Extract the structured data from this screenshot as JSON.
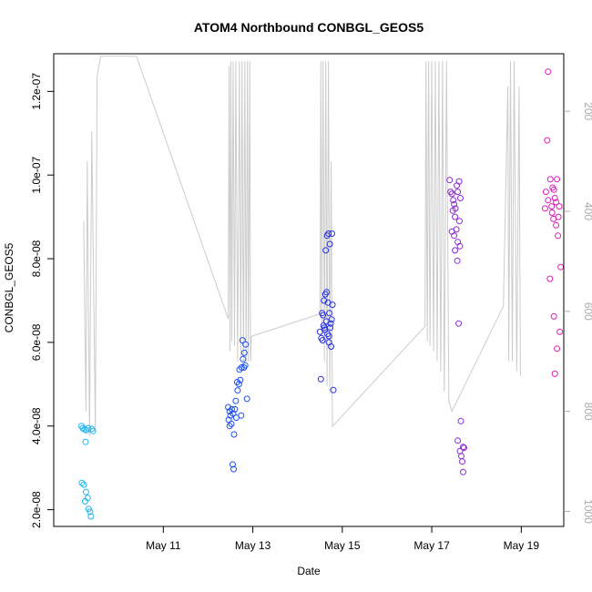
{
  "chart_data": {
    "type": "scatter",
    "title": "ATOM4 Northbound CONBGL_GEOS5",
    "xlabel": "Date",
    "ylabel": "CONBGL_GEOS5",
    "xlim": [
      8.55,
      19.95
    ],
    "ylim": [
      1.6e-08,
      1.29e-07
    ],
    "x_ticks": [
      {
        "value": 11,
        "label": "May 11"
      },
      {
        "value": 13,
        "label": "May 13"
      },
      {
        "value": 15,
        "label": "May 15"
      },
      {
        "value": 17,
        "label": "May 17"
      },
      {
        "value": 19,
        "label": "May 19"
      }
    ],
    "y_ticks": [
      {
        "value": 2e-08,
        "label": "2.0e-08"
      },
      {
        "value": 4e-08,
        "label": "4.0e-08"
      },
      {
        "value": 6e-08,
        "label": "6.0e-08"
      },
      {
        "value": 8e-08,
        "label": "8.0e-08"
      },
      {
        "value": 1e-07,
        "label": "1.0e-07"
      },
      {
        "value": 1.2e-07,
        "label": "1.2e-07"
      }
    ],
    "right_axis": {
      "lim": [
        1030,
        85
      ],
      "ticks": [
        {
          "value": 200,
          "label": "200"
        },
        {
          "value": 400,
          "label": "400"
        },
        {
          "value": 600,
          "label": "600"
        },
        {
          "value": 800,
          "label": "800"
        },
        {
          "value": 1000,
          "label": "1000"
        }
      ],
      "color": "#aaaaaa"
    },
    "line_color": "#cccccc",
    "altitude_line": [
      [
        9.22,
        420
      ],
      [
        9.27,
        800
      ],
      [
        9.3,
        300
      ],
      [
        9.35,
        850
      ],
      [
        9.4,
        240
      ],
      [
        9.48,
        840
      ],
      [
        9.52,
        130
      ],
      [
        9.6,
        90
      ],
      [
        10.4,
        90
      ],
      [
        12.45,
        615
      ],
      [
        12.47,
        110
      ],
      [
        12.49,
        680
      ],
      [
        12.51,
        100
      ],
      [
        12.53,
        660
      ],
      [
        12.56,
        100
      ],
      [
        12.59,
        670
      ],
      [
        12.62,
        100
      ],
      [
        12.66,
        700
      ],
      [
        12.7,
        100
      ],
      [
        12.73,
        690
      ],
      [
        12.76,
        100
      ],
      [
        12.79,
        700
      ],
      [
        12.82,
        100
      ],
      [
        12.85,
        700
      ],
      [
        12.88,
        100
      ],
      [
        12.9,
        700
      ],
      [
        12.93,
        100
      ],
      [
        12.95,
        700
      ],
      [
        12.97,
        650
      ],
      [
        14.5,
        605
      ],
      [
        14.52,
        100
      ],
      [
        14.54,
        650
      ],
      [
        14.57,
        100
      ],
      [
        14.6,
        700
      ],
      [
        14.63,
        100
      ],
      [
        14.66,
        750
      ],
      [
        14.69,
        100
      ],
      [
        14.72,
        760
      ],
      [
        14.75,
        300
      ],
      [
        14.78,
        830
      ],
      [
        16.85,
        630
      ],
      [
        16.87,
        100
      ],
      [
        16.9,
        660
      ],
      [
        16.93,
        100
      ],
      [
        16.96,
        670
      ],
      [
        17.0,
        100
      ],
      [
        17.04,
        680
      ],
      [
        17.08,
        100
      ],
      [
        17.12,
        700
      ],
      [
        17.16,
        100
      ],
      [
        17.2,
        720
      ],
      [
        17.24,
        100
      ],
      [
        17.28,
        760
      ],
      [
        17.33,
        100
      ],
      [
        17.38,
        780
      ],
      [
        17.42,
        790
      ],
      [
        17.45,
        800
      ],
      [
        18.6,
        590
      ],
      [
        18.7,
        150
      ],
      [
        18.72,
        700
      ],
      [
        18.76,
        100
      ],
      [
        18.8,
        700
      ],
      [
        18.84,
        100
      ],
      [
        18.9,
        720
      ],
      [
        18.95,
        150
      ],
      [
        18.98,
        730
      ]
    ],
    "series": [
      {
        "name": "",
        "color": "#1eb4f0",
        "points": [
          [
            9.17,
            4e-08
          ],
          [
            9.2,
            3.95e-08
          ],
          [
            9.24,
            3.92e-08
          ],
          [
            9.28,
            3.9e-08
          ],
          [
            9.32,
            3.95e-08
          ],
          [
            9.4,
            3.93e-08
          ],
          [
            9.43,
            3.88e-08
          ],
          [
            9.26,
            3.62e-08
          ],
          [
            9.18,
            2.64e-08
          ],
          [
            9.22,
            2.6e-08
          ],
          [
            9.27,
            2.42e-08
          ],
          [
            9.31,
            2.28e-08
          ],
          [
            9.25,
            2.2e-08
          ],
          [
            9.33,
            2.02e-08
          ],
          [
            9.36,
            1.95e-08
          ],
          [
            9.38,
            1.84e-08
          ]
        ]
      },
      {
        "name": "",
        "color": "#1e50f0",
        "points": [
          [
            12.45,
            4.45e-08
          ],
          [
            12.48,
            4.35e-08
          ],
          [
            12.5,
            4.25e-08
          ],
          [
            12.53,
            4.4e-08
          ],
          [
            12.56,
            4.3e-08
          ],
          [
            12.6,
            4.4e-08
          ],
          [
            12.63,
            4.2e-08
          ],
          [
            12.46,
            4.15e-08
          ],
          [
            12.52,
            4.05e-08
          ],
          [
            12.58,
            3.8e-08
          ],
          [
            12.55,
            3.08e-08
          ],
          [
            12.57,
            2.97e-08
          ],
          [
            12.48,
            4e-08
          ],
          [
            12.62,
            4.6e-08
          ],
          [
            12.66,
            4.85e-08
          ],
          [
            12.69,
            5e-08
          ],
          [
            12.72,
            5.1e-08
          ],
          [
            12.65,
            5.05e-08
          ],
          [
            12.75,
            5.4e-08
          ],
          [
            12.78,
            5.6e-08
          ],
          [
            12.81,
            5.75e-08
          ],
          [
            12.84,
            5.95e-08
          ],
          [
            12.77,
            6.05e-08
          ],
          [
            12.7,
            5.35e-08
          ],
          [
            12.83,
            5.45e-08
          ],
          [
            12.87,
            4.65e-08
          ],
          [
            12.74,
            4.25e-08
          ],
          [
            12.8,
            5.4e-08
          ]
        ]
      },
      {
        "name": "",
        "color": "#2830e0",
        "points": [
          [
            14.5,
            6.25e-08
          ],
          [
            14.53,
            6.1e-08
          ],
          [
            14.56,
            6.05e-08
          ],
          [
            14.58,
            6.4e-08
          ],
          [
            14.61,
            6.3e-08
          ],
          [
            14.64,
            6.5e-08
          ],
          [
            14.67,
            6.2e-08
          ],
          [
            14.7,
            6.15e-08
          ],
          [
            14.73,
            6.35e-08
          ],
          [
            14.76,
            6.55e-08
          ],
          [
            14.78,
            6.9e-08
          ],
          [
            14.55,
            6.7e-08
          ],
          [
            14.59,
            7e-08
          ],
          [
            14.62,
            7.15e-08
          ],
          [
            14.65,
            7.2e-08
          ],
          [
            14.68,
            6.95e-08
          ],
          [
            14.71,
            6.7e-08
          ],
          [
            14.74,
            6.45e-08
          ],
          [
            14.6,
            6.35e-08
          ],
          [
            14.63,
            8.2e-08
          ],
          [
            14.66,
            8.55e-08
          ],
          [
            14.69,
            8.6e-08
          ],
          [
            14.72,
            8.35e-08
          ],
          [
            14.77,
            8.6e-08
          ],
          [
            14.52,
            5.12e-08
          ],
          [
            14.8,
            4.86e-08
          ],
          [
            14.75,
            5.9e-08
          ],
          [
            14.57,
            6.65e-08
          ],
          [
            14.7,
            6e-08
          ]
        ]
      },
      {
        "name": "",
        "color": "#8c28d2",
        "points": [
          [
            17.4,
            9.88e-08
          ],
          [
            17.42,
            9.6e-08
          ],
          [
            17.45,
            9.55e-08
          ],
          [
            17.48,
            9.4e-08
          ],
          [
            17.5,
            9.3e-08
          ],
          [
            17.53,
            9.2e-08
          ],
          [
            17.56,
            9.75e-08
          ],
          [
            17.58,
            9.6e-08
          ],
          [
            17.61,
            9.85e-08
          ],
          [
            17.64,
            9.45e-08
          ],
          [
            17.47,
            9.15e-08
          ],
          [
            17.52,
            9e-08
          ],
          [
            17.55,
            8.7e-08
          ],
          [
            17.5,
            8.55e-08
          ],
          [
            17.58,
            8.4e-08
          ],
          [
            17.63,
            8.3e-08
          ],
          [
            17.45,
            8.65e-08
          ],
          [
            17.52,
            8.2e-08
          ],
          [
            17.57,
            7.95e-08
          ],
          [
            17.62,
            8.9e-08
          ],
          [
            17.6,
            6.45e-08
          ],
          [
            17.65,
            4.12e-08
          ],
          [
            17.58,
            3.65e-08
          ],
          [
            17.63,
            3.4e-08
          ],
          [
            17.7,
            3.5e-08
          ],
          [
            17.72,
            3.48e-08
          ],
          [
            17.66,
            3.28e-08
          ],
          [
            17.68,
            3.15e-08
          ],
          [
            17.7,
            2.9e-08
          ]
        ]
      },
      {
        "name": "",
        "color": "#dc1eb9",
        "points": [
          [
            19.6,
            1.247e-07
          ],
          [
            19.58,
            1.083e-07
          ],
          [
            19.65,
            9.9e-08
          ],
          [
            19.55,
            9.6e-08
          ],
          [
            19.6,
            9.4e-08
          ],
          [
            19.7,
            9.7e-08
          ],
          [
            19.73,
            9.65e-08
          ],
          [
            19.8,
            9.9e-08
          ],
          [
            19.75,
            9.45e-08
          ],
          [
            19.68,
            9.25e-08
          ],
          [
            19.78,
            9.35e-08
          ],
          [
            19.85,
            9.25e-08
          ],
          [
            19.53,
            9.2e-08
          ],
          [
            19.83,
            9e-08
          ],
          [
            19.72,
            8.95e-08
          ],
          [
            19.78,
            8.8e-08
          ],
          [
            19.82,
            8.55e-08
          ],
          [
            19.88,
            7.8e-08
          ],
          [
            19.64,
            7.52e-08
          ],
          [
            19.73,
            6.62e-08
          ],
          [
            19.86,
            6.25e-08
          ],
          [
            19.8,
            5.85e-08
          ],
          [
            19.75,
            5.25e-08
          ],
          [
            19.69,
            9.1e-08
          ]
        ]
      }
    ],
    "grid": false,
    "legend": "none"
  }
}
